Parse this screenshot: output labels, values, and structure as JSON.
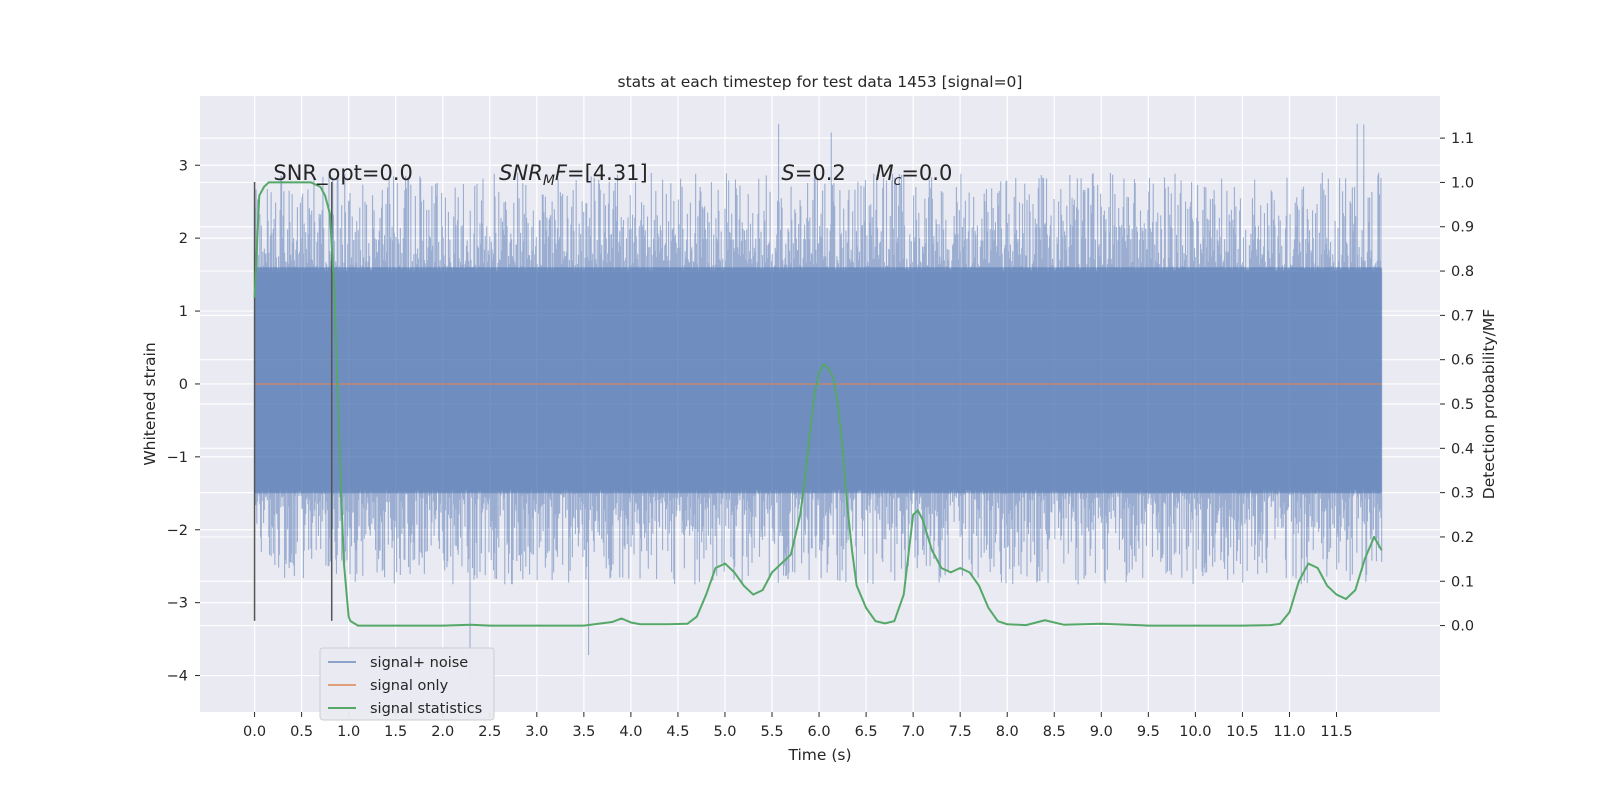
{
  "chart_data": {
    "type": "line",
    "title": "stats at each timestep for test data 1453 [signal=0]",
    "xlabel": "Time (s)",
    "ylabel_left": "Whitened strain",
    "ylabel_right": "Detection probability/MF",
    "xlim": [
      -0.58,
      12.6
    ],
    "ylim_left": [
      -4.5,
      3.95
    ],
    "ylim_right": [
      -0.195,
      1.195
    ],
    "x_ticks": [
      0.0,
      0.5,
      1.0,
      1.5,
      2.0,
      2.5,
      3.0,
      3.5,
      4.0,
      4.5,
      5.0,
      5.5,
      6.0,
      6.5,
      7.0,
      7.5,
      8.0,
      8.5,
      9.0,
      9.5,
      10.0,
      10.5,
      11.0,
      11.5
    ],
    "x_tick_labels": [
      "0.0",
      "0.5",
      "1.0",
      "1.5",
      "2.0",
      "2.5",
      "3.0",
      "3.5",
      "4.0",
      "4.5",
      "5.0",
      "5.5",
      "6.0",
      "6.5",
      "7.0",
      "7.5",
      "8.0",
      "8.5",
      "9.0",
      "9.5",
      "10.0",
      "10.5",
      "11.0",
      "11.5"
    ],
    "y_ticks_left": [
      -4,
      -3,
      -2,
      -1,
      0,
      1,
      2,
      3
    ],
    "y_tick_labels_left": [
      "−4",
      "−3",
      "−2",
      "−1",
      "0",
      "1",
      "2",
      "3"
    ],
    "y_ticks_right": [
      0.0,
      0.1,
      0.2,
      0.3,
      0.4,
      0.5,
      0.6,
      0.7,
      0.8,
      0.9,
      1.0,
      1.1
    ],
    "y_tick_labels_right": [
      "0.0",
      "0.1",
      "0.2",
      "0.3",
      "0.4",
      "0.5",
      "0.6",
      "0.7",
      "0.8",
      "0.9",
      "1.0",
      "1.1"
    ],
    "grid": true,
    "legend_position": "lower-left",
    "annotations": [
      {
        "segments": [
          {
            "text": "SNR_opt=0.0",
            "italic": false
          }
        ],
        "x": 0.2,
        "y": 2.8
      },
      {
        "segments": [
          {
            "text": "SNR",
            "italic": true
          },
          {
            "text": "M",
            "italic": true,
            "sub": true
          },
          {
            "text": "F",
            "italic": true
          },
          {
            "text": "=[4.31]",
            "italic": false
          }
        ],
        "x": 2.6,
        "y": 2.8
      },
      {
        "segments": [
          {
            "text": "S",
            "italic": true
          },
          {
            "text": "=0.2",
            "italic": false
          }
        ],
        "x": 5.6,
        "y": 2.8
      },
      {
        "segments": [
          {
            "text": "M",
            "italic": true
          },
          {
            "text": "c",
            "italic": true,
            "sub": true
          },
          {
            "text": "=0.0",
            "italic": false
          }
        ],
        "x": 6.6,
        "y": 2.8
      }
    ],
    "vlines": [
      {
        "x": 0.0,
        "y_from": -3.25,
        "y_to": 2.77
      },
      {
        "x": 0.82,
        "y_from": -3.25,
        "y_to": 2.77
      }
    ],
    "series": [
      {
        "name": "signal+ noise",
        "axis": "left",
        "color": "#4c72b0",
        "style": "dense-noise",
        "x_range": [
          0.0,
          11.98
        ],
        "core_band": [
          -1.5,
          1.6
        ],
        "extremes": [
          {
            "x": 2.29,
            "y": -4.05
          },
          {
            "x": 3.55,
            "y": -3.72
          },
          {
            "x": 5.57,
            "y": 3.57
          },
          {
            "x": 6.13,
            "y": 3.45
          },
          {
            "x": 11.72,
            "y": 3.57
          },
          {
            "x": 11.79,
            "y": 3.56
          }
        ]
      },
      {
        "name": "signal only",
        "axis": "left",
        "color": "#dd8452",
        "x": [
          0.0,
          11.98
        ],
        "y": [
          0.0,
          0.0
        ]
      },
      {
        "name": "signal statistics",
        "axis": "right",
        "color": "#55a868",
        "x": [
          0.0,
          0.05,
          0.1,
          0.15,
          0.2,
          0.3,
          0.4,
          0.5,
          0.6,
          0.7,
          0.75,
          0.8,
          0.82,
          0.85,
          0.88,
          0.92,
          0.95,
          1.0,
          1.02,
          1.1,
          1.5,
          2.0,
          2.3,
          2.5,
          3.0,
          3.5,
          3.8,
          3.9,
          4.0,
          4.1,
          4.4,
          4.6,
          4.7,
          4.8,
          4.9,
          5.0,
          5.1,
          5.2,
          5.3,
          5.4,
          5.5,
          5.6,
          5.7,
          5.8,
          5.85,
          5.9,
          5.95,
          6.0,
          6.05,
          6.1,
          6.15,
          6.2,
          6.25,
          6.3,
          6.35,
          6.4,
          6.5,
          6.6,
          6.7,
          6.8,
          6.9,
          7.0,
          7.05,
          7.1,
          7.2,
          7.3,
          7.4,
          7.5,
          7.6,
          7.7,
          7.8,
          7.9,
          8.0,
          8.2,
          8.4,
          8.6,
          9.0,
          9.5,
          10.0,
          10.5,
          10.8,
          10.9,
          11.0,
          11.1,
          11.2,
          11.3,
          11.4,
          11.5,
          11.6,
          11.7,
          11.8,
          11.9,
          11.98
        ],
        "y": [
          0.74,
          0.97,
          0.99,
          1.0,
          1.0,
          1.0,
          1.0,
          1.0,
          1.0,
          0.99,
          0.97,
          0.93,
          0.86,
          0.75,
          0.55,
          0.3,
          0.14,
          0.02,
          0.01,
          0.0,
          0.0,
          0.0,
          0.002,
          0.0,
          0.0,
          0.0,
          0.008,
          0.016,
          0.007,
          0.003,
          0.003,
          0.004,
          0.02,
          0.07,
          0.13,
          0.14,
          0.12,
          0.09,
          0.07,
          0.08,
          0.12,
          0.14,
          0.16,
          0.25,
          0.33,
          0.43,
          0.52,
          0.57,
          0.59,
          0.58,
          0.56,
          0.5,
          0.4,
          0.27,
          0.17,
          0.09,
          0.04,
          0.01,
          0.005,
          0.01,
          0.07,
          0.25,
          0.26,
          0.24,
          0.17,
          0.13,
          0.12,
          0.13,
          0.12,
          0.09,
          0.04,
          0.01,
          0.003,
          0.001,
          0.012,
          0.002,
          0.004,
          0.0,
          0.0,
          0.0,
          0.001,
          0.004,
          0.03,
          0.1,
          0.14,
          0.13,
          0.09,
          0.07,
          0.06,
          0.08,
          0.15,
          0.2,
          0.17
        ]
      }
    ]
  }
}
